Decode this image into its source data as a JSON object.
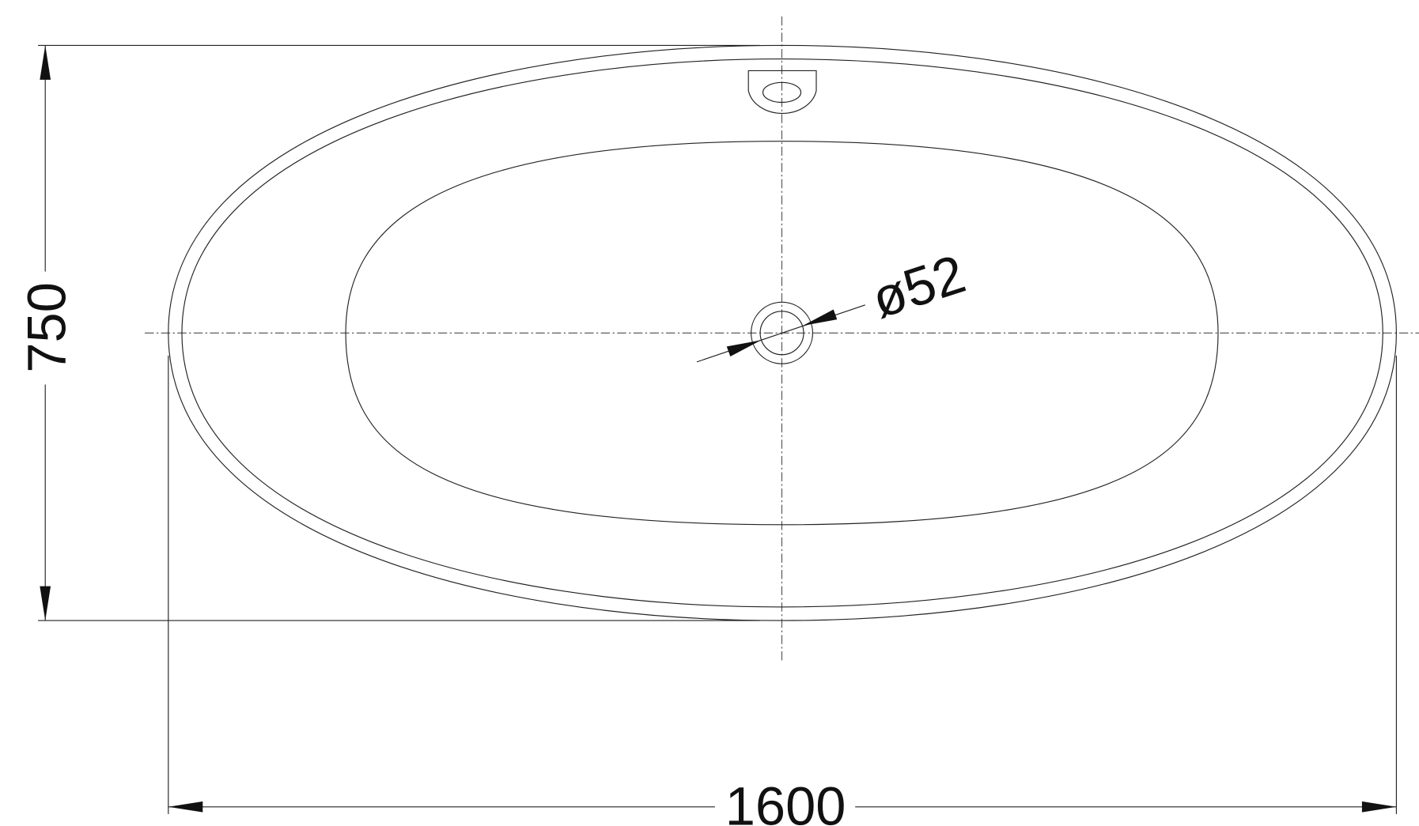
{
  "dimensions": {
    "length": 1600,
    "width": 750,
    "drain_diameter": "ø52"
  }
}
